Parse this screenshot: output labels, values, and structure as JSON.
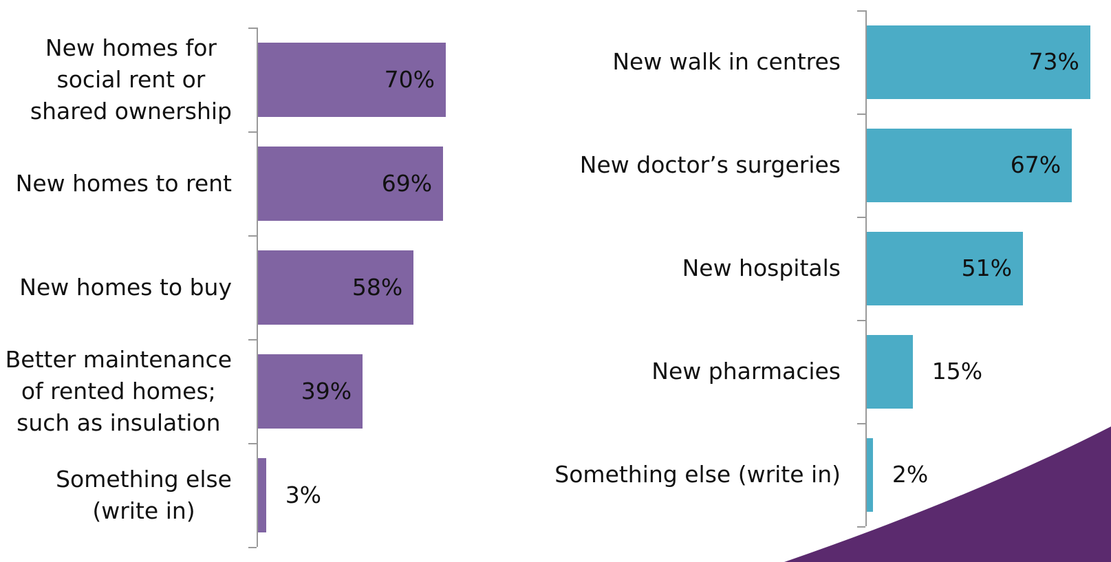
{
  "chart_data": [
    {
      "type": "bar",
      "categories": [
        "New homes for\nsocial rent or\nshared ownership",
        "New homes to rent",
        "New homes to buy",
        "Better maintenance\nof rented homes;\nsuch as insulation",
        "Something else\n(write in)"
      ],
      "values": [
        70,
        69,
        58,
        39,
        3
      ],
      "value_labels": [
        "70%",
        "69%",
        "58%",
        "39%",
        "3%"
      ],
      "color": "#8064a2",
      "xlim": [
        0,
        100
      ]
    },
    {
      "type": "bar",
      "categories": [
        "New walk in centres",
        "New doctor’s surgeries",
        "New hospitals",
        "New pharmacies",
        "Something else (write in)"
      ],
      "values": [
        73,
        67,
        51,
        15,
        2
      ],
      "value_labels": [
        "73%",
        "67%",
        "51%",
        "15%",
        "2%"
      ],
      "color": "#4bacc6",
      "xlim": [
        0,
        100
      ]
    }
  ]
}
